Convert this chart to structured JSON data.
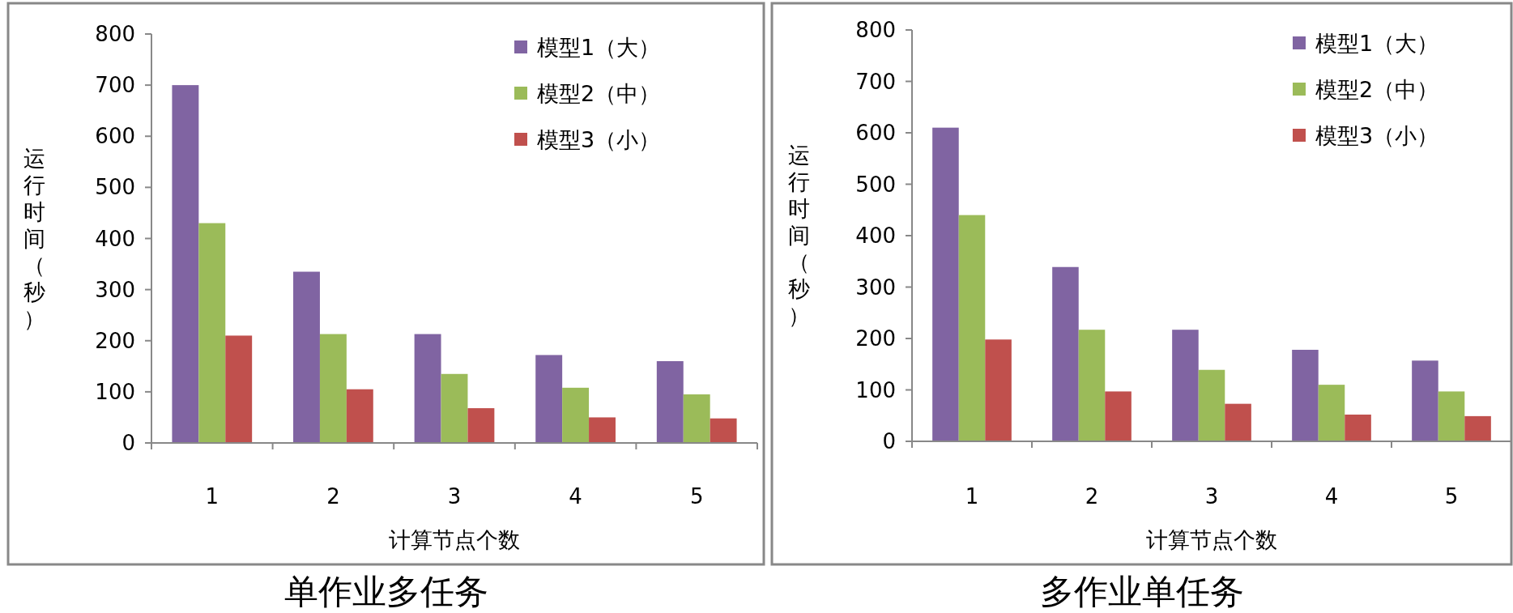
{
  "chart_data": [
    {
      "type": "bar",
      "title": "单作业多任务",
      "xlabel": "计算节点个数",
      "ylabel": "运行时间（秒）",
      "categories": [
        "1",
        "2",
        "3",
        "4",
        "5"
      ],
      "ylim": [
        0,
        800
      ],
      "yticks": [
        0,
        100,
        200,
        300,
        400,
        500,
        600,
        700,
        800
      ],
      "legend": "top right",
      "series": [
        {
          "name": "模型1（大）",
          "color": "#8064a2",
          "values": [
            700,
            335,
            213,
            172,
            160
          ]
        },
        {
          "name": "模型2（中）",
          "color": "#9bbb59",
          "values": [
            430,
            213,
            135,
            108,
            95
          ]
        },
        {
          "name": "模型3（小）",
          "color": "#c0504d",
          "values": [
            210,
            105,
            68,
            50,
            48
          ]
        }
      ]
    },
    {
      "type": "bar",
      "title": "多作业单任务",
      "xlabel": "计算节点个数",
      "ylabel": "运行时间（秒）",
      "categories": [
        "1",
        "2",
        "3",
        "4",
        "5"
      ],
      "ylim": [
        0,
        800
      ],
      "yticks": [
        0,
        100,
        200,
        300,
        400,
        500,
        600,
        700,
        800
      ],
      "legend": "top right",
      "series": [
        {
          "name": "模型1（大）",
          "color": "#8064a2",
          "values": [
            610,
            339,
            217,
            178,
            157
          ]
        },
        {
          "name": "模型2（中）",
          "color": "#9bbb59",
          "values": [
            440,
            217,
            139,
            110,
            97
          ]
        },
        {
          "name": "模型3（小）",
          "color": "#c0504d",
          "values": [
            198,
            97,
            73,
            52,
            49
          ]
        }
      ]
    }
  ]
}
